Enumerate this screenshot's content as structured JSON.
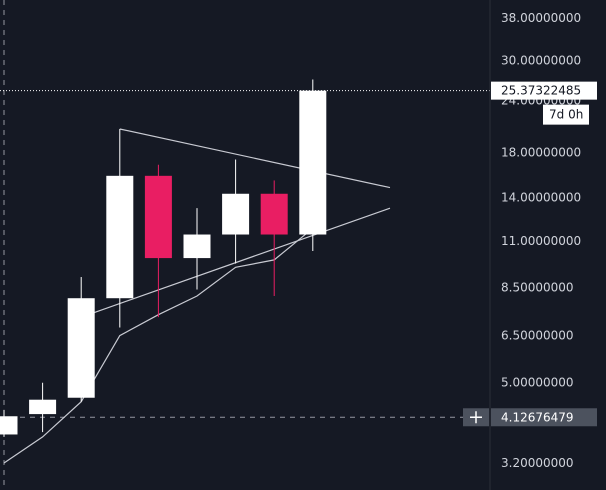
{
  "chart_data": {
    "type": "candlestick",
    "scale": "log",
    "y_ticks": [
      "38.00000000",
      "30.00000000",
      "24.00000000",
      "18.00000000",
      "14.00000000",
      "11.00000000",
      "8.50000000",
      "6.50000000",
      "5.00000000",
      "3.20000000"
    ],
    "y_tick_values": [
      38,
      30,
      24,
      18,
      14,
      11,
      8.5,
      6.5,
      5.0,
      3.2
    ],
    "last_price_label": "25.37322485",
    "last_price": 25.37322485,
    "countdown_label": "7d 0h",
    "crosshair_label": "4.12676479",
    "crosshair_price": 4.12676479,
    "candles": [
      {
        "open": 3.75,
        "high": 4.3,
        "low": 3.7,
        "close": 4.15
      },
      {
        "open": 4.2,
        "high": 5.0,
        "low": 3.8,
        "close": 4.55
      },
      {
        "open": 4.6,
        "high": 9.0,
        "low": 4.5,
        "close": 8.0
      },
      {
        "open": 8.0,
        "high": 20.5,
        "low": 6.8,
        "close": 15.8
      },
      {
        "open": 15.8,
        "high": 16.8,
        "low": 7.2,
        "close": 10.0
      },
      {
        "open": 10.0,
        "high": 13.2,
        "low": 8.4,
        "close": 11.4
      },
      {
        "open": 11.4,
        "high": 17.3,
        "low": 9.7,
        "close": 14.3
      },
      {
        "open": 14.3,
        "high": 15.4,
        "low": 8.1,
        "close": 11.4
      },
      {
        "open": 11.4,
        "high": 27.0,
        "low": 10.4,
        "close": 25.37322485
      }
    ],
    "moving_average": [
      3.2,
      3.7,
      4.5,
      6.5,
      7.3,
      8.1,
      9.5,
      9.9,
      11.8
    ],
    "trendlines": [
      {
        "from": {
          "candle": 3,
          "price": 20.5
        },
        "to": {
          "candle": 10,
          "price": 14.8
        }
      },
      {
        "from": {
          "candle": 2,
          "price": 7.2
        },
        "to": {
          "candle": 10,
          "price": 13.2
        }
      }
    ],
    "colors": {
      "background": "#151924",
      "up": "#ffffff",
      "down": "#e91e63",
      "trendline": "#c8cad2",
      "axis_text": "#d1d4dc",
      "crosshair_tag": "#4c525e"
    }
  }
}
